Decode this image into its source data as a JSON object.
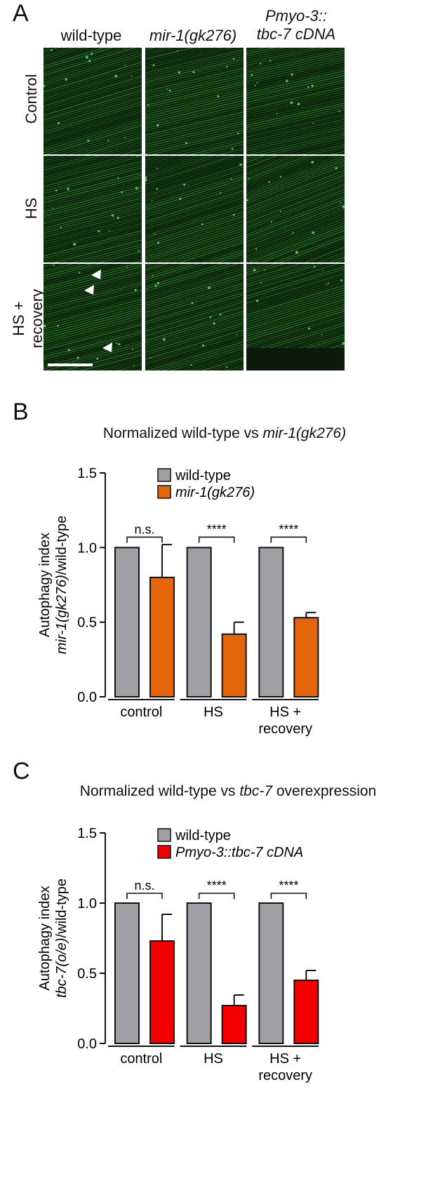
{
  "panel_a": {
    "letter": "A",
    "columns": [
      {
        "line1": "wild-type",
        "line2": "",
        "italic": false
      },
      {
        "line1": "mir-1(gk276)",
        "line2": "",
        "italic": true
      },
      {
        "line1": "Pmyo-3::",
        "line2": "tbc-7 cDNA",
        "italic": true
      }
    ],
    "rows": [
      {
        "line1": "Control",
        "line2": ""
      },
      {
        "line1": "HS",
        "line2": ""
      },
      {
        "line1": "HS +",
        "line2": "recovery"
      }
    ],
    "colors": {
      "fluorescence": "#2ea52e",
      "background": "#0b1a0b"
    }
  },
  "chart_data": [
    {
      "panel": "B",
      "type": "bar",
      "title_plain": "Normalized wild-type vs ",
      "title_italic": "mir-1(gk276)",
      "ylabel_line1": "Autophagy index",
      "ylabel_line2_italic": "mir-1(gk276)",
      "ylabel_line2_plain": "/wild-type",
      "ylim": [
        0,
        1.5
      ],
      "yticks": [
        "0.0",
        "0.5",
        "1.0",
        "1.5"
      ],
      "categories": [
        "control",
        "HS",
        "HS +|recovery"
      ],
      "series": [
        {
          "name": "wild-type",
          "values": [
            1.0,
            1.0,
            1.0
          ],
          "errors": [
            0,
            0,
            0
          ],
          "color": "#a0a0a4"
        },
        {
          "name": "mir-1(gk276)",
          "values": [
            0.8,
            0.42,
            0.53
          ],
          "errors": [
            0.22,
            0.08,
            0.035
          ],
          "color": "#e5650a"
        }
      ],
      "significance": [
        "n.s.",
        "****",
        "****"
      ],
      "legend_position": "top"
    },
    {
      "panel": "C",
      "type": "bar",
      "title_plain": "Normalized wild-type vs ",
      "title_italic": "tbc-7",
      "title_tail": " overexpression",
      "ylabel_line1": "Autophagy index",
      "ylabel_line2_italic": "tbc-7(o/e)",
      "ylabel_line2_plain": "/wild-type",
      "ylim": [
        0,
        1.5
      ],
      "yticks": [
        "0.0",
        "0.5",
        "1.0",
        "1.5"
      ],
      "categories": [
        "control",
        "HS",
        "HS +|recovery"
      ],
      "series": [
        {
          "name": "wild-type",
          "values": [
            1.0,
            1.0,
            1.0
          ],
          "errors": [
            0,
            0,
            0
          ],
          "color": "#a0a0a4"
        },
        {
          "name": "Pmyo-3::tbc-7 cDNA",
          "values": [
            0.73,
            0.27,
            0.45
          ],
          "errors": [
            0.19,
            0.075,
            0.07
          ],
          "color": "#f50000"
        }
      ],
      "significance": [
        "n.s.",
        "****",
        "****"
      ],
      "legend_position": "top"
    }
  ]
}
